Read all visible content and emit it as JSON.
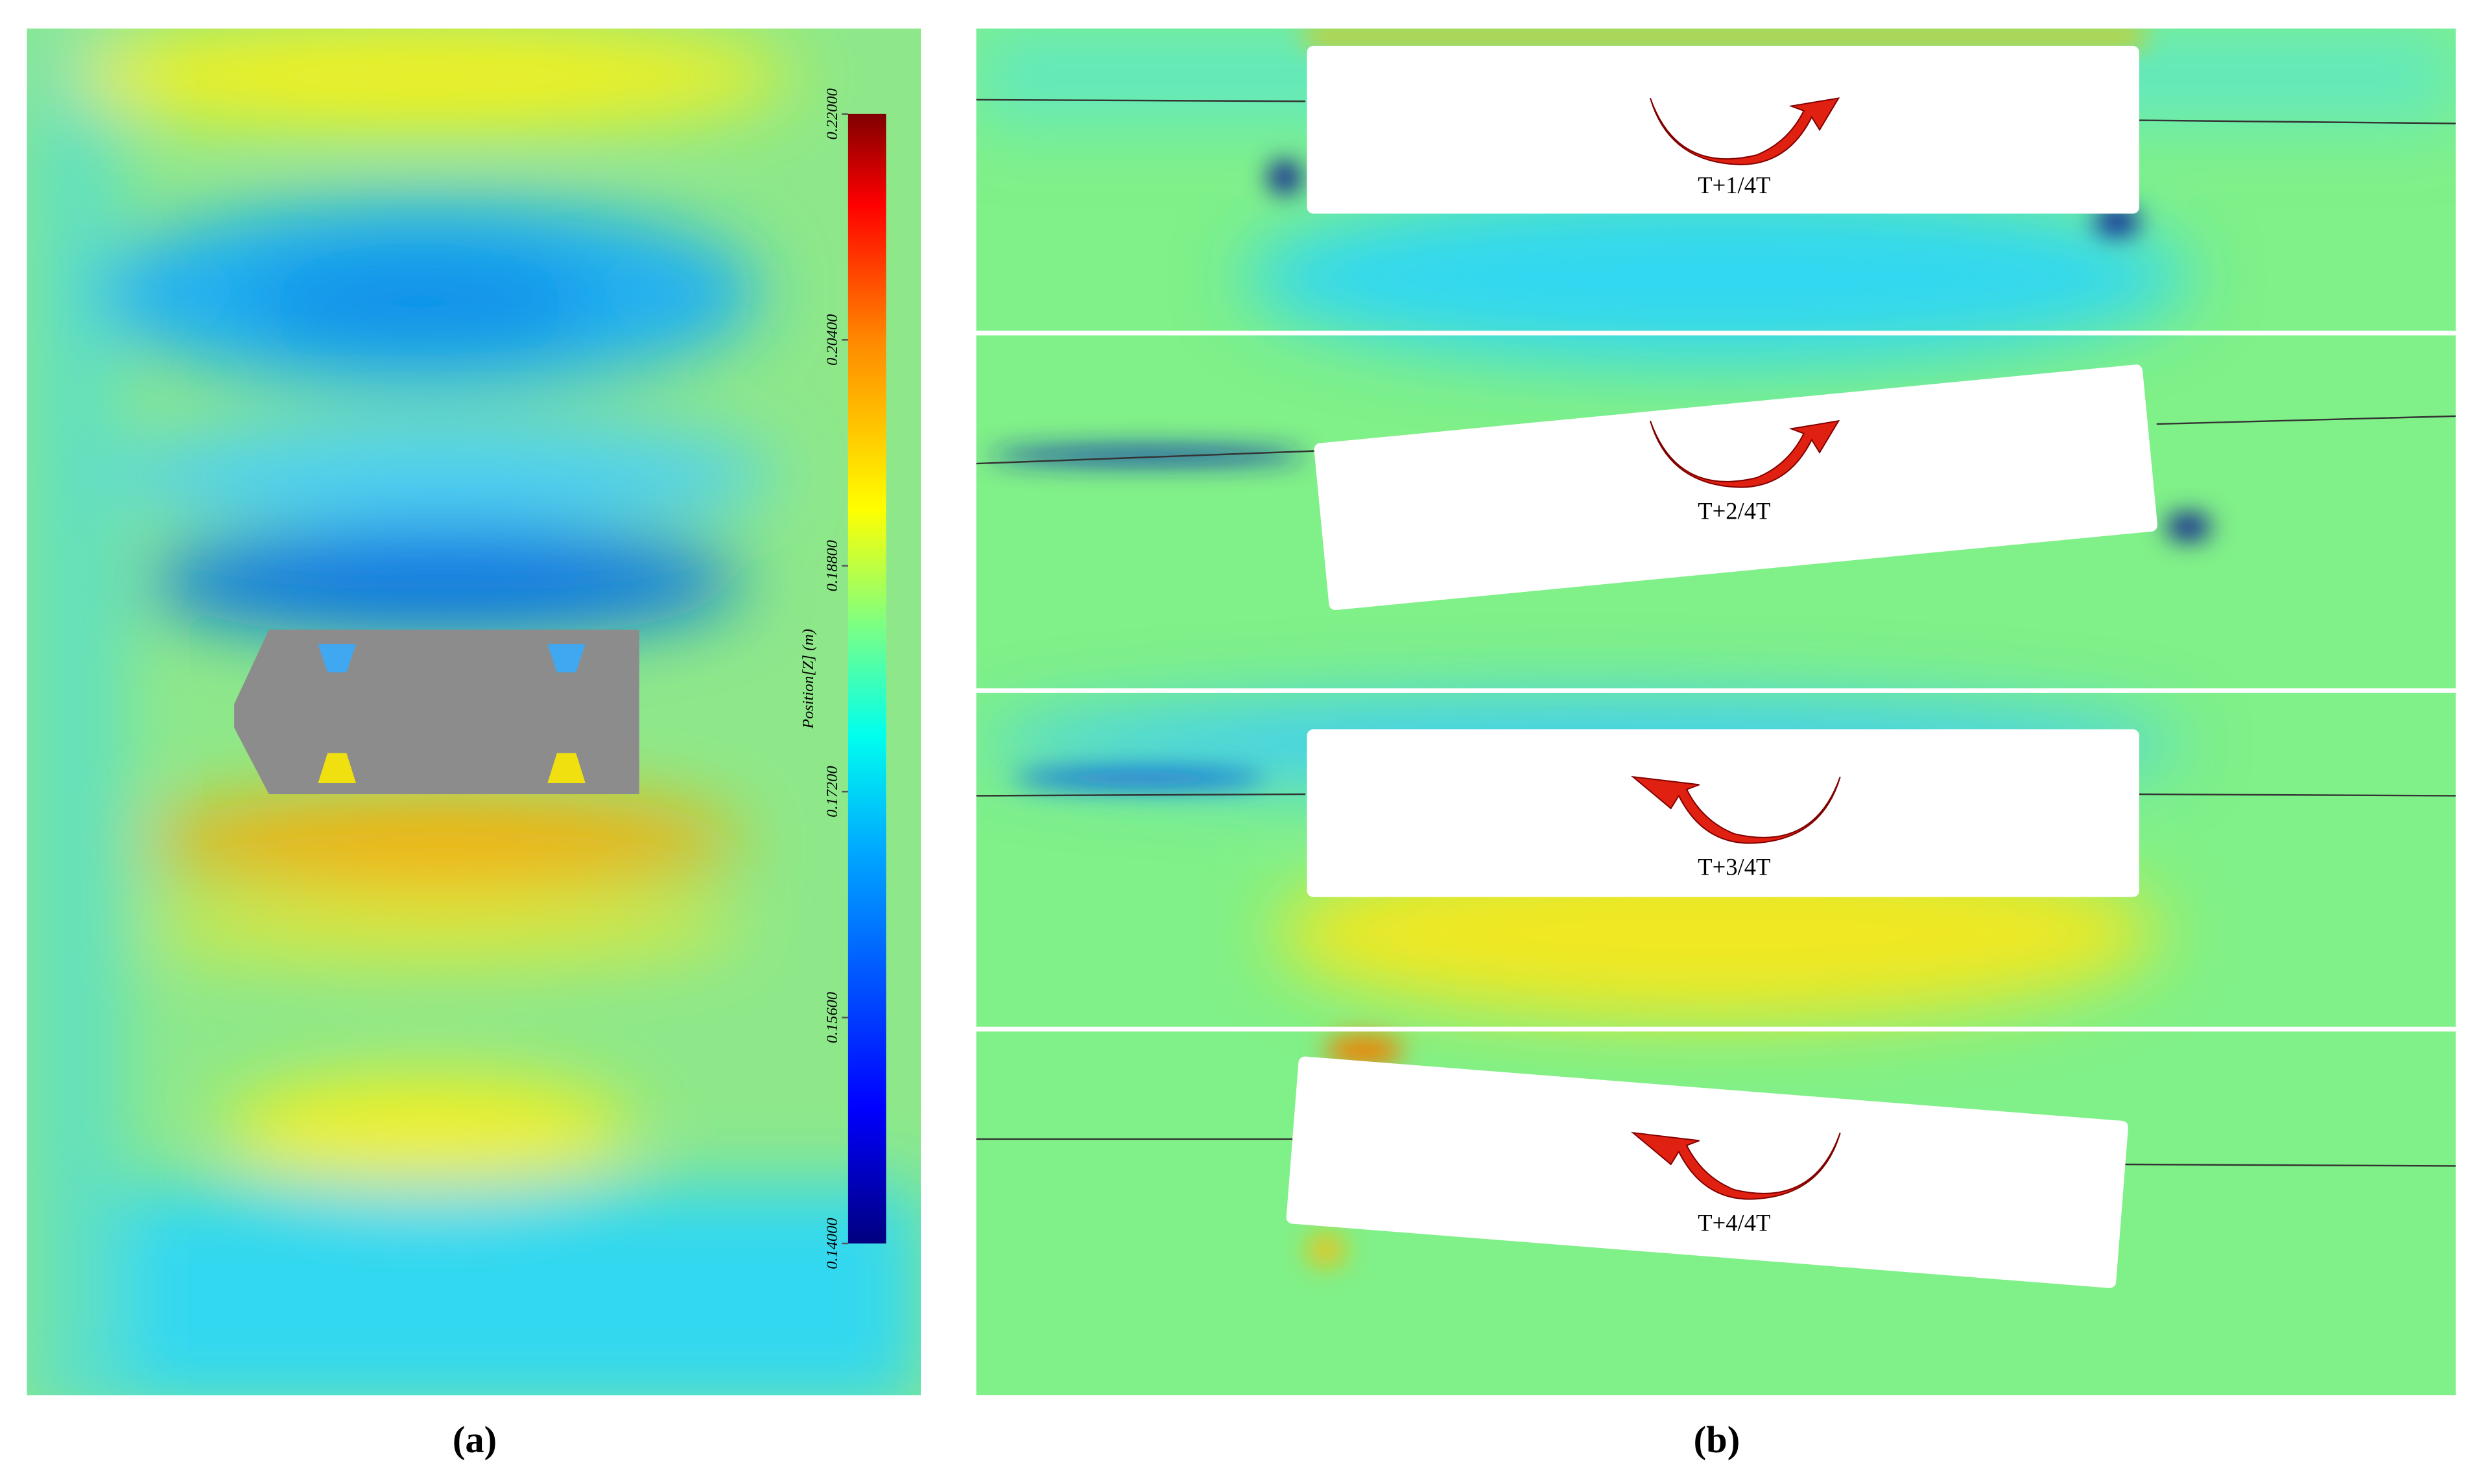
{
  "panel_a": {
    "label": "(a)",
    "colorbar": {
      "title": "Position[Z] (m)",
      "range": [
        0.14,
        0.22
      ],
      "ticks": [
        {
          "value": 0.14,
          "label": "0.14000"
        },
        {
          "value": 0.156,
          "label": "0.15600"
        },
        {
          "value": 0.172,
          "label": "0.17200"
        },
        {
          "value": 0.188,
          "label": "0.18800"
        },
        {
          "value": 0.204,
          "label": "0.20400"
        },
        {
          "value": 0.22,
          "label": "0.22000"
        }
      ]
    }
  },
  "panel_b": {
    "label": "(b)",
    "frames": [
      {
        "label": "T+1/4T"
      },
      {
        "label": "T+2/4T"
      },
      {
        "label": "T+3/4T"
      },
      {
        "label": "T+4/4T"
      }
    ]
  }
}
